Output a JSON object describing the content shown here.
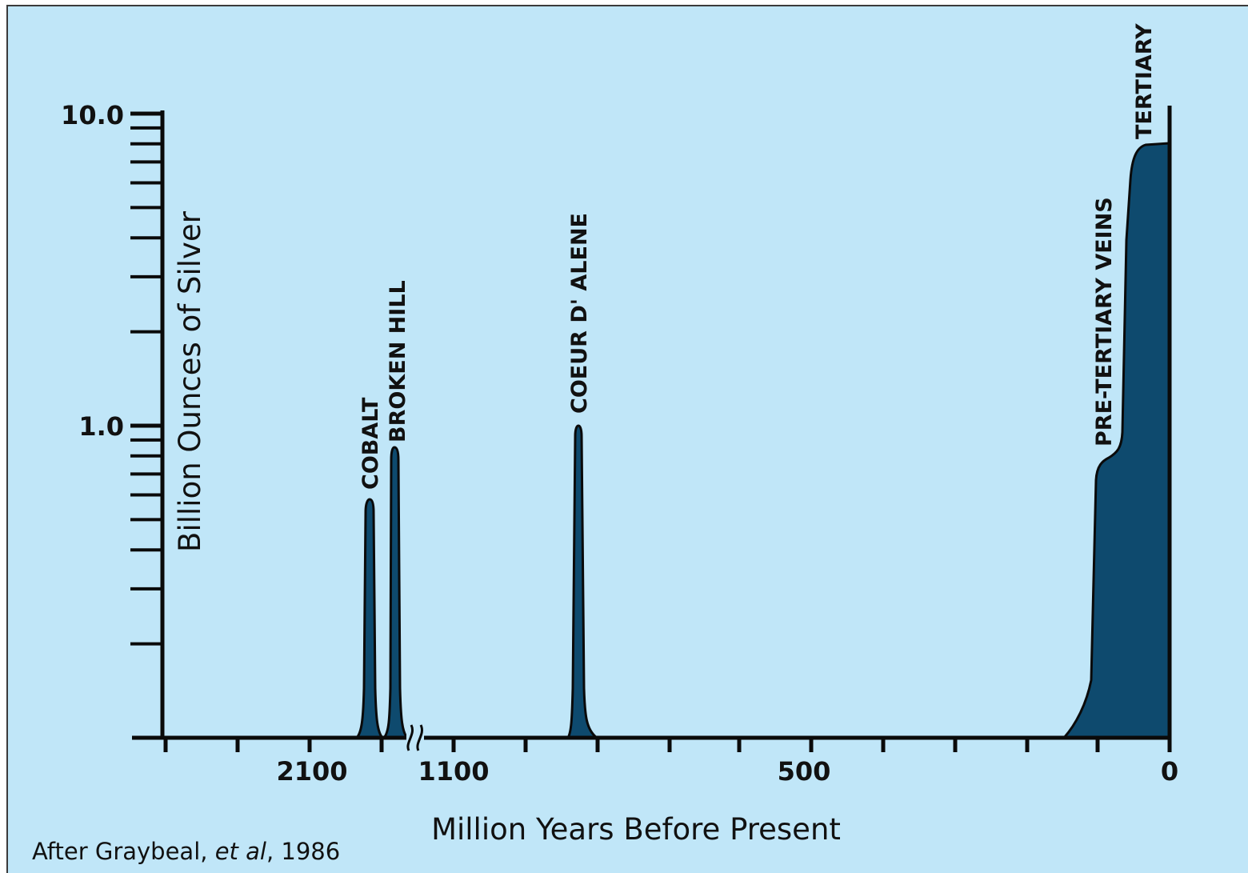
{
  "chart_data": {
    "type": "area",
    "title": "",
    "xlabel": "Million Years Before Present",
    "ylabel": "Billion Ounces of Silver",
    "y_scale": "log",
    "ylim": [
      0.1,
      10.0
    ],
    "y_tick_labels": [
      "10.0",
      "1.0"
    ],
    "x_axis_note": "axis break between 2100 and 1100",
    "x_tick_labels": [
      "2100",
      "1100",
      "500",
      "0"
    ],
    "grid": false,
    "fill_color": "#0e4a6e",
    "background_color": "#c0e6f8",
    "series": [
      {
        "label": "COBALT",
        "age_ma": 2150,
        "peak": 0.6
      },
      {
        "label": "BROKEN HILL",
        "age_ma": 1700,
        "peak": 0.85
      },
      {
        "label": "COEUR D' ALENE",
        "age_ma": 850,
        "peak": 1.0
      },
      {
        "label": "PRE-TERTIARY VEINS",
        "age_ma": 100,
        "peak": 0.75
      },
      {
        "label": "TERTIARY",
        "age_ma": 20,
        "peak": 8.0
      }
    ],
    "source_note": {
      "prefix": "After Graybeal, ",
      "italic": "et al",
      "suffix": ", 1986"
    }
  }
}
